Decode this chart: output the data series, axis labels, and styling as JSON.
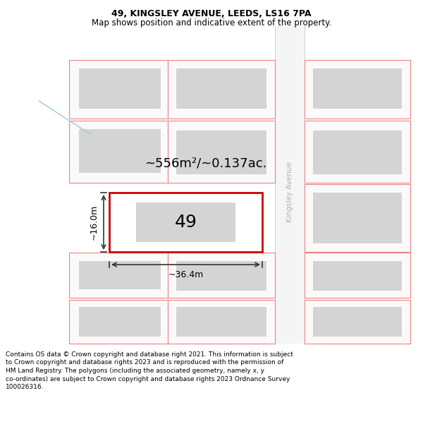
{
  "title": "49, KINGSLEY AVENUE, LEEDS, LS16 7PA",
  "subtitle": "Map shows position and indicative extent of the property.",
  "footer_lines": [
    "Contains OS data © Crown copyright and database right 2021. This information is subject",
    "to Crown copyright and database rights 2023 and is reproduced with the permission of",
    "HM Land Registry. The polygons (including the associated geometry, namely x, y",
    "co-ordinates) are subject to Crown copyright and database rights 2023 Ordnance Survey",
    "100026316."
  ],
  "area_label": "~556m²/~0.137ac.",
  "width_label": "~36.4m",
  "height_label": "~16.0m",
  "plot_number": "49",
  "bg_color": "#ffffff",
  "plot_border": "#cc0000",
  "building_fill": "#d4d4d4",
  "neighbour_border": "#f08080",
  "neighbour_fill": "#fafafa",
  "street_label": "Kingsley Avenue",
  "blue_line_color": "#a0c8e0",
  "dim_color": "#333333"
}
